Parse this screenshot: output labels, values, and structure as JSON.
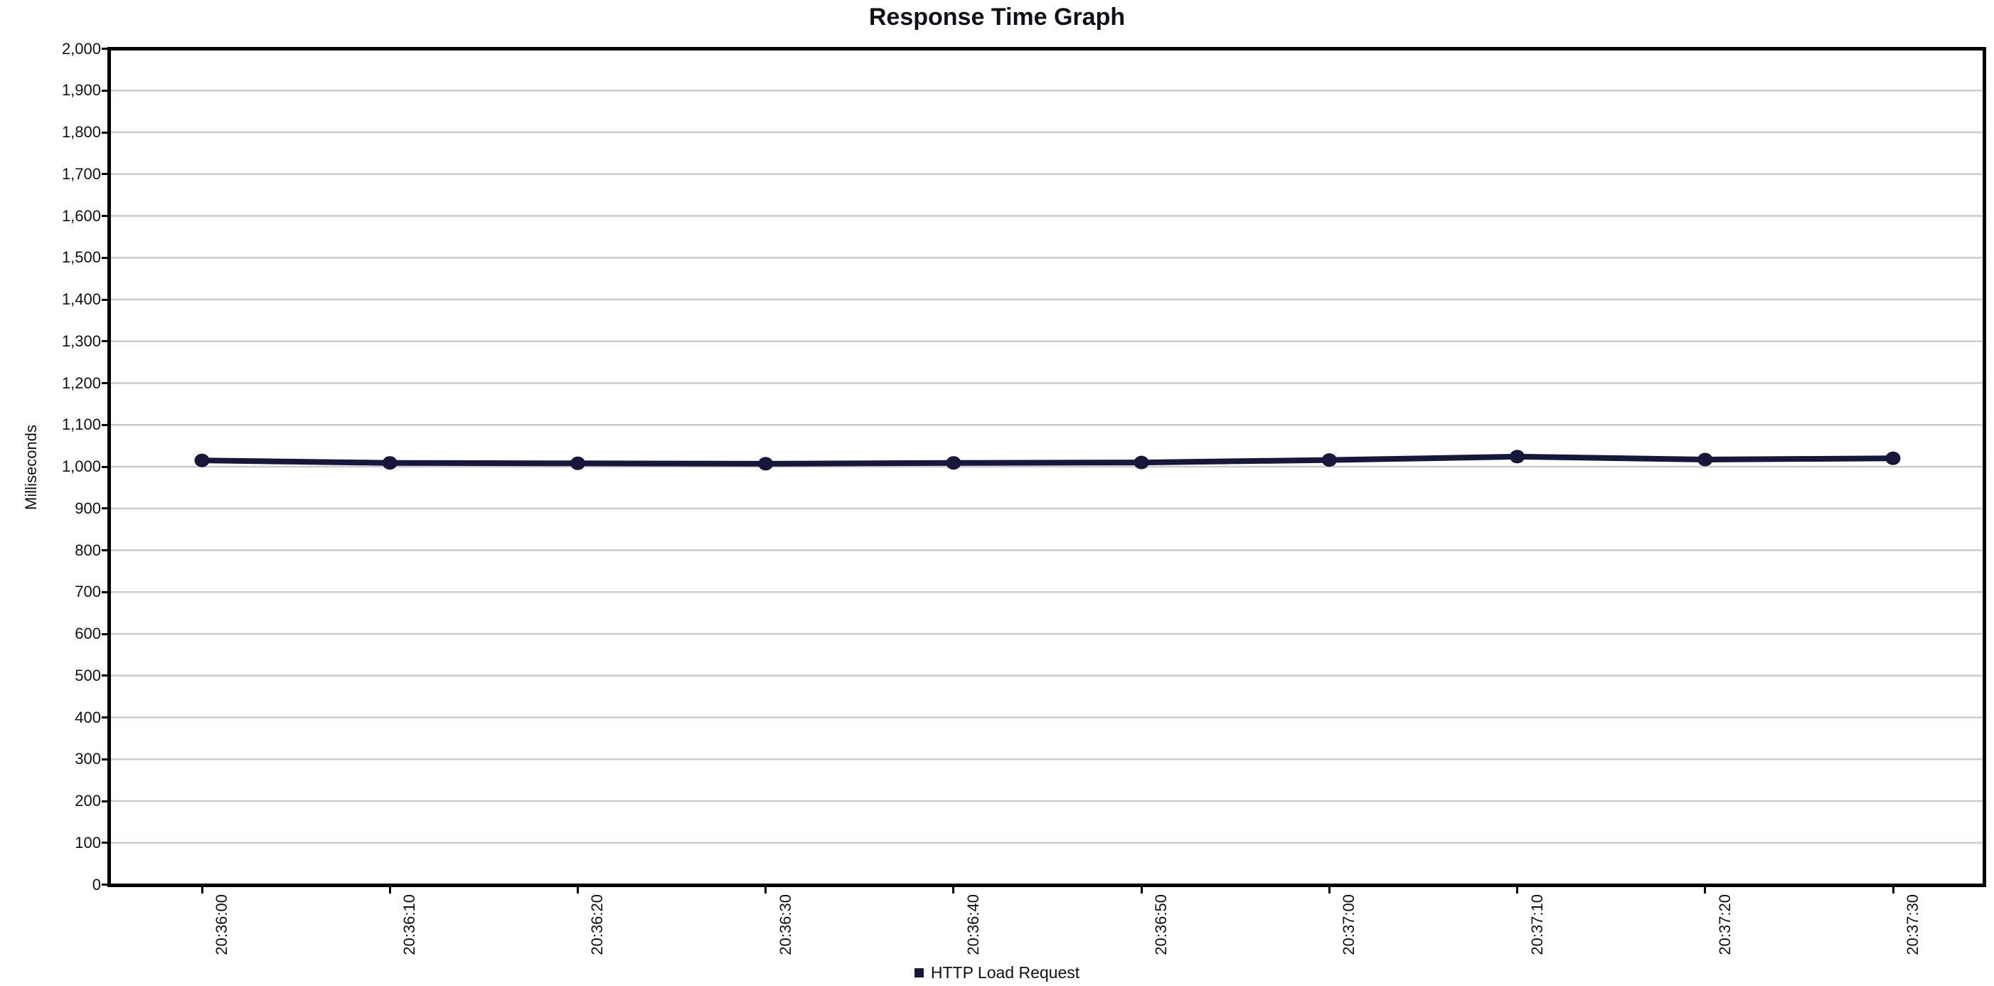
{
  "chart_data": {
    "type": "line",
    "title": "Response Time Graph",
    "xlabel": "",
    "ylabel": "Milliseconds",
    "x": [
      "20:36:00",
      "20:36:10",
      "20:36:20",
      "20:36:30",
      "20:36:40",
      "20:36:50",
      "20:37:00",
      "20:37:10",
      "20:37:20",
      "20:37:30"
    ],
    "series": [
      {
        "name": "HTTP Load Request",
        "color": "#17173B",
        "values": [
          1015,
          1009,
          1008,
          1007,
          1009,
          1010,
          1016,
          1024,
          1017,
          1020
        ]
      }
    ],
    "ylim": [
      0,
      2000
    ],
    "ytick_step": 100,
    "ytick_labels": [
      "0",
      "100",
      "200",
      "300",
      "400",
      "500",
      "600",
      "700",
      "800",
      "900",
      "1,000",
      "1,100",
      "1,200",
      "1,300",
      "1,400",
      "1,500",
      "1,600",
      "1,700",
      "1,800",
      "1,900",
      "2,000"
    ],
    "x_label_rotation": -90,
    "grid": true,
    "marker": "filled-circle",
    "legend_position": "bottom-center"
  },
  "colors": {
    "series": "#17173B",
    "gridline": "#CCCCCC",
    "plot_border": "#000000",
    "text": "#101018",
    "background": "#FFFFFF"
  }
}
